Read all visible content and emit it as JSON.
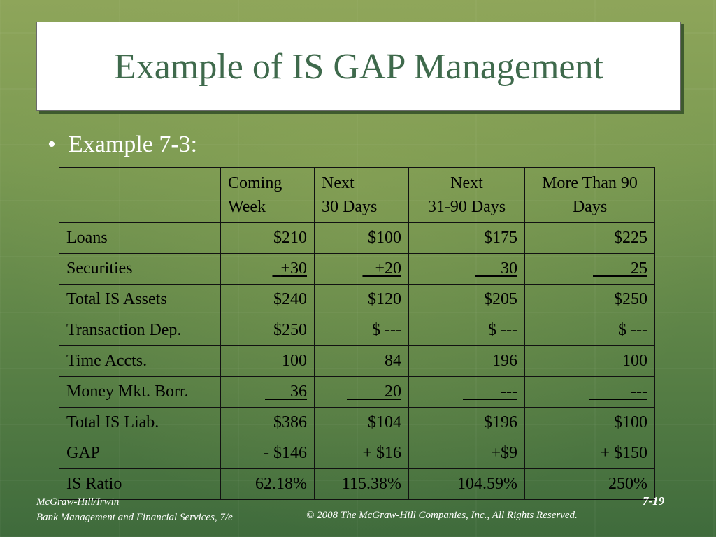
{
  "slide": {
    "title": "Example of IS GAP Management",
    "bullet_marker": "•",
    "bullet_text": "Example 7-3:"
  },
  "table": {
    "headers": [
      {
        "line1": "",
        "line2": ""
      },
      {
        "line1": "Coming",
        "line2": "Week"
      },
      {
        "line1": "Next",
        "line2": "30 Days"
      },
      {
        "line1": "Next",
        "line2": "31-90 Days"
      },
      {
        "line1": "More Than 90",
        "line2": "Days"
      }
    ],
    "rows": [
      {
        "label": "Loans",
        "values": [
          "$210",
          "$100",
          "$175",
          "$225"
        ]
      },
      {
        "label": "Securities",
        "values": [
          "+30",
          "+20",
          "30",
          "25"
        ]
      },
      {
        "label": "Total IS Assets",
        "values": [
          "$240",
          "$120",
          "$205",
          "$250"
        ]
      },
      {
        "label": "Transaction Dep.",
        "values": [
          "$250",
          "$ ---",
          "$ ---",
          "$ ---"
        ]
      },
      {
        "label": "Time Accts.",
        "values": [
          "100",
          "84",
          "196",
          "100"
        ]
      },
      {
        "label": "Money Mkt. Borr.",
        "values": [
          "36",
          "20",
          "---",
          "---"
        ]
      },
      {
        "label": "Total IS Liab.",
        "values": [
          "$386",
          "$104",
          "$196",
          "$100"
        ]
      },
      {
        "label": "GAP",
        "values": [
          "- $146",
          "+ $16",
          "+$9",
          "+ $150"
        ]
      },
      {
        "label": "IS Ratio",
        "values": [
          "62.18%",
          "115.38%",
          "104.59%",
          "250%"
        ]
      }
    ]
  },
  "footer": {
    "publisher": "McGraw-Hill/Irwin",
    "book": "Bank Management and Financial Services, 7/e",
    "copyright": "© 2008  The McGraw-Hill Companies, Inc., All Rights Reserved.",
    "page": "7-19"
  },
  "colors": {
    "title_text": "#3f6a4c",
    "background_top": "#8ea55a",
    "background_bottom": "#3f6b3c"
  }
}
